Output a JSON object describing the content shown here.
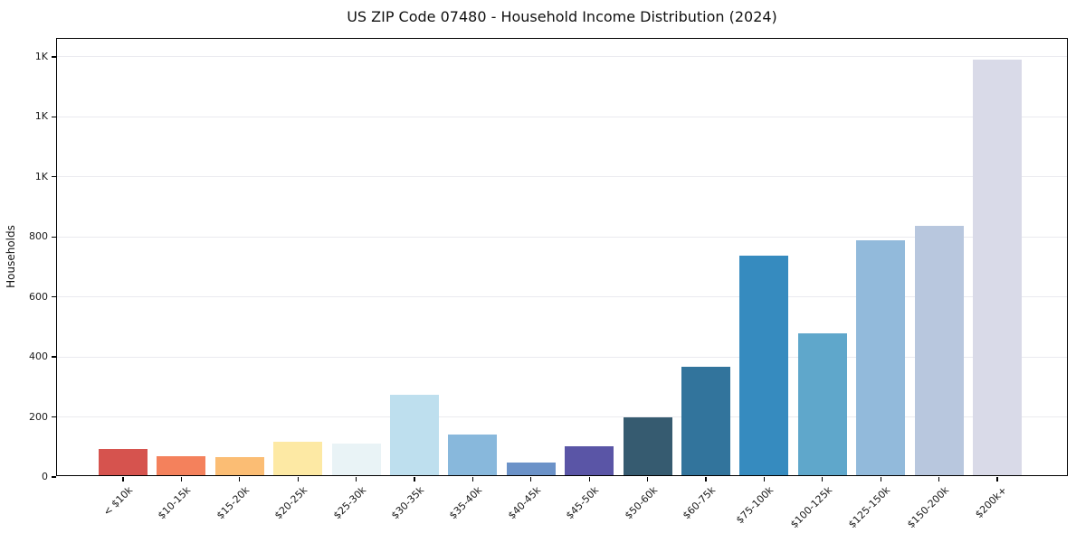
{
  "title": "US ZIP Code 07480 - Household Income Distribution (2024)",
  "chart_data": {
    "type": "bar",
    "title": "US ZIP Code 07480 - Household Income Distribution (2024)",
    "xlabel": "",
    "ylabel": "Households",
    "categories": [
      "< $10k",
      "$10-15k",
      "$15-20k",
      "$20-25k",
      "$25-30k",
      "$30-35k",
      "$35-40k",
      "$40-45k",
      "$45-50k",
      "$50-60k",
      "$60-75k",
      "$75-100k",
      "$100-125k",
      "$125-150k",
      "$150-200k",
      "$200k+"
    ],
    "values": [
      88,
      64,
      60,
      111,
      105,
      268,
      135,
      42,
      96,
      193,
      361,
      732,
      472,
      783,
      830,
      1385
    ],
    "bar_colors": [
      "#d6534e",
      "#f4815c",
      "#fbbd74",
      "#fde9a4",
      "#e9f3f6",
      "#bedfee",
      "#88b8dc",
      "#6b92c8",
      "#5a55a6",
      "#365b70",
      "#32749c",
      "#368bbf",
      "#5fa7cb",
      "#92badb",
      "#b8c7de",
      "#d9dae8"
    ],
    "ylim": [
      0,
      1460
    ],
    "yticks": [
      {
        "value": 0,
        "label": "0"
      },
      {
        "value": 200,
        "label": "200"
      },
      {
        "value": 400,
        "label": "400"
      },
      {
        "value": 600,
        "label": "600"
      },
      {
        "value": 800,
        "label": "800"
      },
      {
        "value": 1000,
        "label": "1K"
      },
      {
        "value": 1200,
        "label": "1K"
      },
      {
        "value": 1400,
        "label": "1K"
      }
    ],
    "grid": "horizontal",
    "legend": "none",
    "background_color": "#ffffff",
    "grid_color": "#eaeaef",
    "spine_color": "#000000"
  }
}
